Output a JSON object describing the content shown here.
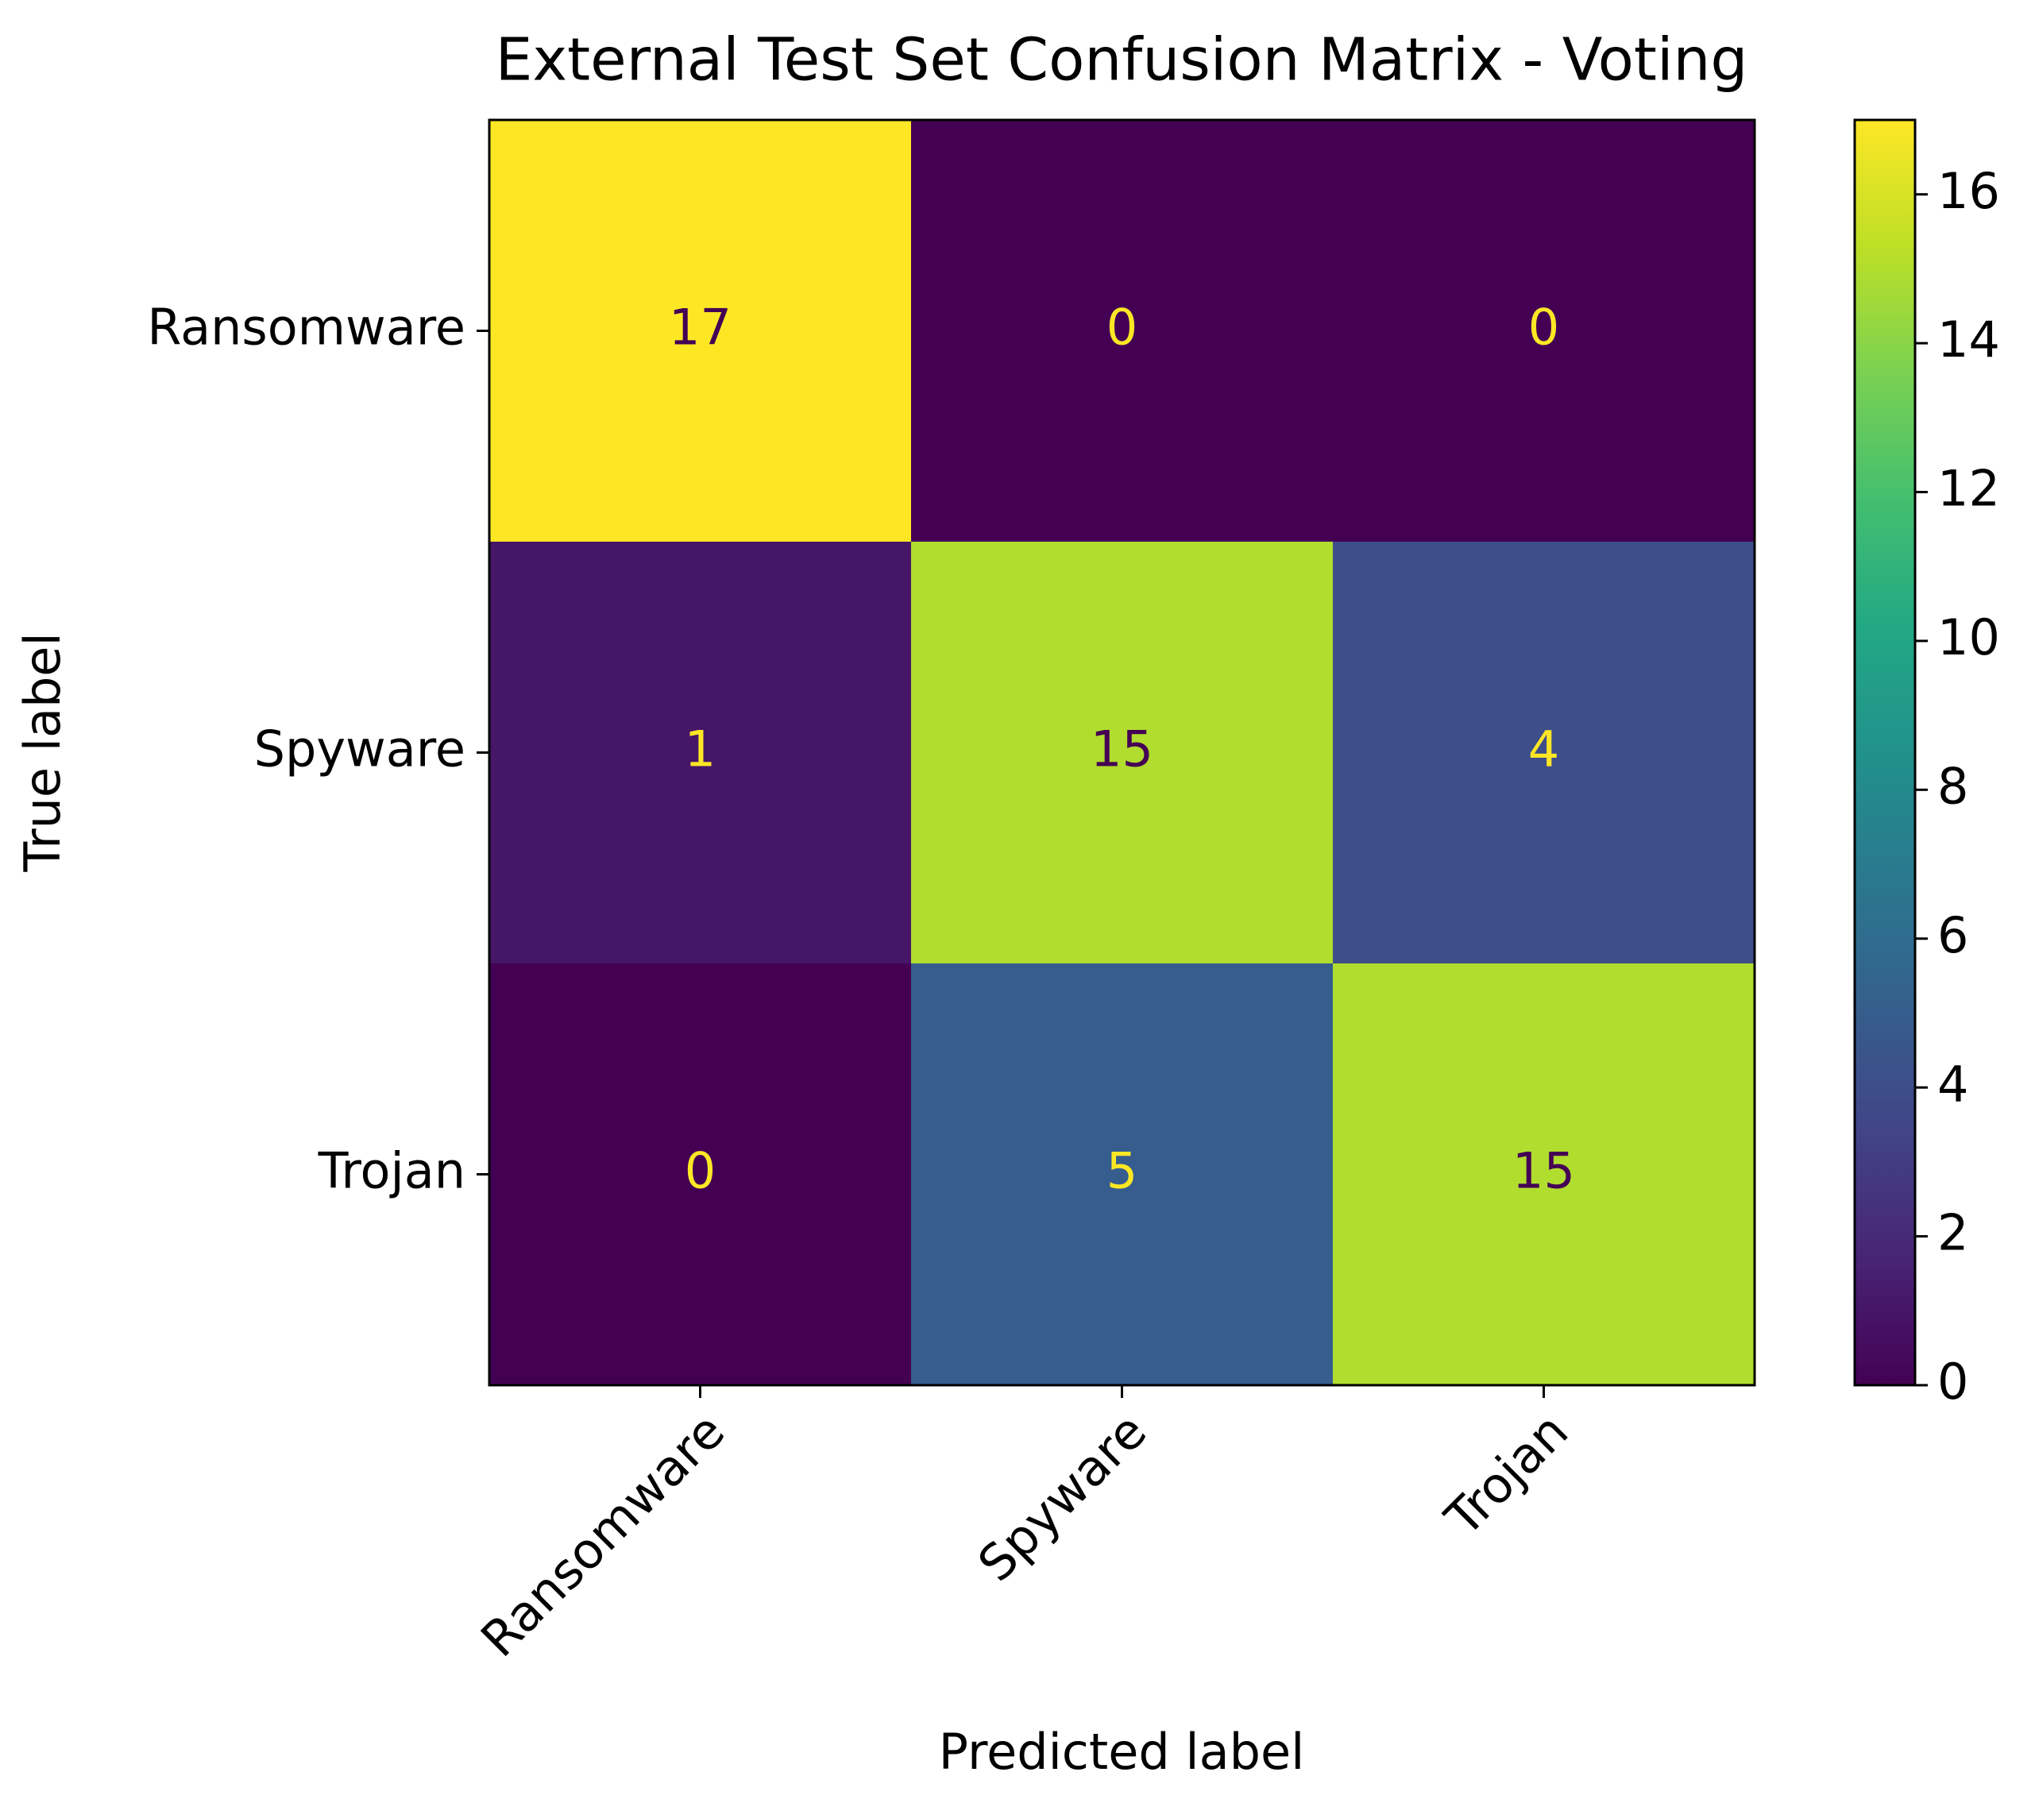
{
  "chart_data": {
    "type": "heatmap",
    "title": "External Test Set Confusion Matrix - Voting",
    "x_label": "Predicted label",
    "y_label": "True label",
    "x_categories": [
      "Ransomware",
      "Spyware",
      "Trojan"
    ],
    "y_categories": [
      "Ransomware",
      "Spyware",
      "Trojan"
    ],
    "values": [
      [
        17,
        0,
        0
      ],
      [
        1,
        15,
        4
      ],
      [
        0,
        5,
        15
      ]
    ],
    "colormap": "viridis",
    "clim": [
      0,
      17
    ],
    "colorbar_ticks": [
      0,
      2,
      4,
      6,
      8,
      10,
      12,
      14,
      16
    ]
  }
}
